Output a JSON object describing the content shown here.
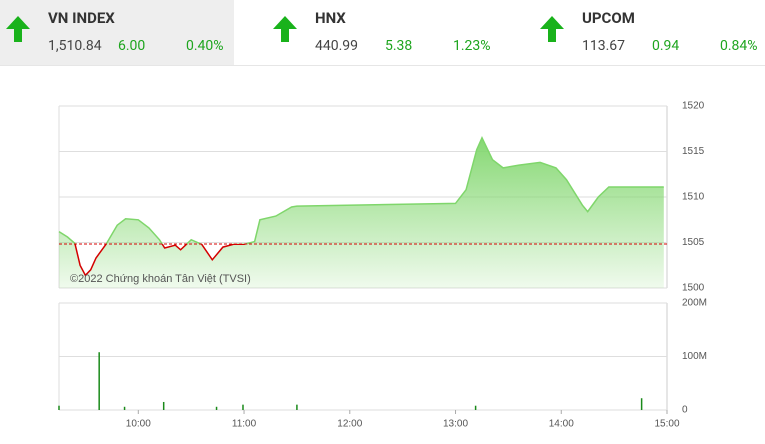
{
  "indices": [
    {
      "name": "VN INDEX",
      "value": "1,510.84",
      "change": "6.00",
      "percent": "0.40%"
    },
    {
      "name": "HNX",
      "value": "440.99",
      "change": "5.38",
      "percent": "1.23%"
    },
    {
      "name": "UPCOM",
      "value": "113.67",
      "change": "0.94",
      "percent": "0.84%"
    }
  ],
  "chart_data": [
    {
      "type": "area",
      "annotation": "©2022 Chứng khoán Tân Việt (TVSI)",
      "x": [
        9.25,
        9.33,
        9.4,
        9.45,
        9.5,
        9.55,
        9.6,
        9.7,
        9.8,
        9.88,
        10.0,
        10.1,
        10.2,
        10.25,
        10.35,
        10.4,
        10.5,
        10.6,
        10.7,
        10.8,
        10.9,
        11.0,
        11.1,
        11.15,
        11.3,
        11.45,
        11.5,
        13.0,
        13.1,
        13.2,
        13.25,
        13.35,
        13.45,
        13.6,
        13.8,
        13.95,
        14.05,
        14.2,
        14.25,
        14.35,
        14.45,
        14.75,
        14.97
      ],
      "values": [
        1506.2,
        1505.6,
        1504.9,
        1502.5,
        1501.4,
        1502.0,
        1503.3,
        1504.9,
        1506.9,
        1507.6,
        1507.5,
        1506.6,
        1505.3,
        1504.4,
        1504.7,
        1504.2,
        1505.3,
        1504.8,
        1503.1,
        1504.5,
        1504.8,
        1504.8,
        1505.1,
        1507.5,
        1507.9,
        1508.9,
        1509.0,
        1509.3,
        1510.8,
        1515.2,
        1516.5,
        1514.1,
        1513.2,
        1513.5,
        1513.8,
        1513.2,
        1511.9,
        1509.1,
        1508.4,
        1510.0,
        1511.1,
        1511.1,
        1511.1
      ],
      "xlim": [
        9.25,
        15
      ],
      "ylim": [
        1500,
        1520
      ],
      "yticks": [
        1500,
        1505,
        1510,
        1515,
        1520
      ],
      "reference": 1504.84,
      "color": "#7fd66b",
      "below_color": "#d40000",
      "reference_color": "#d40000"
    },
    {
      "type": "bar",
      "x": [
        9.25,
        9.63,
        9.87,
        10.24,
        10.74,
        10.99,
        11.5,
        13.19,
        14.76
      ],
      "values": [
        8,
        108,
        6,
        15,
        6,
        10,
        10,
        8,
        22
      ],
      "xlim": [
        9.25,
        15
      ],
      "ylim": [
        0,
        200
      ],
      "yticks": [
        0,
        {
          "value": 100,
          "label": "100M"
        },
        {
          "value": 200,
          "label": "200M"
        }
      ],
      "xticks": [
        {
          "value": 10,
          "label": "10:00"
        },
        {
          "value": 11,
          "label": "11:00"
        },
        {
          "value": 12,
          "label": "12:00"
        },
        {
          "value": 13,
          "label": "13:00"
        },
        {
          "value": 14,
          "label": "14:00"
        },
        {
          "value": 15,
          "label": "15:00"
        }
      ],
      "color": "#1a8a1a"
    }
  ]
}
